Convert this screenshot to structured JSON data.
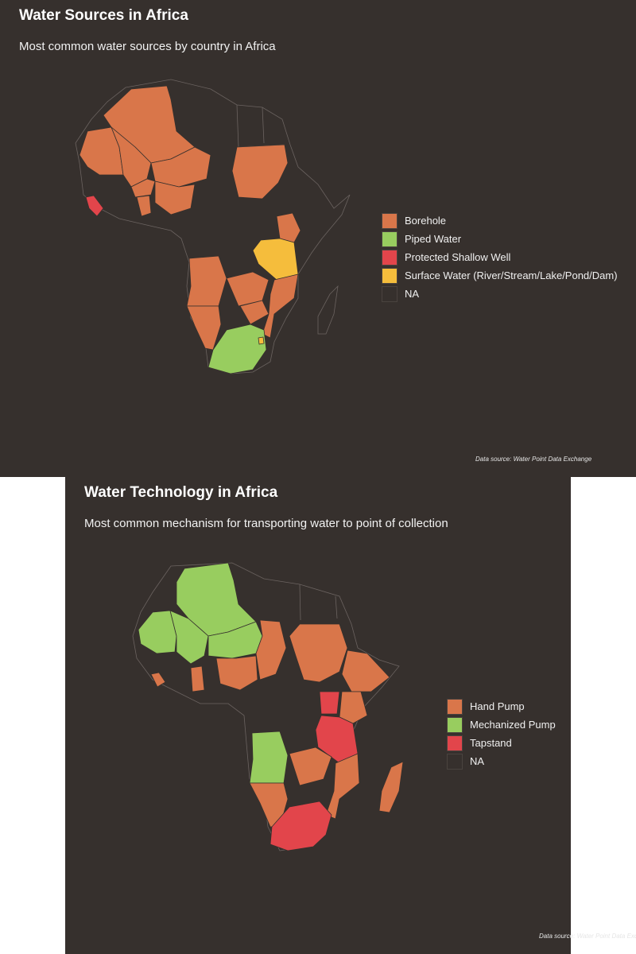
{
  "colors": {
    "background": "#36302d",
    "orange": "#d9764a",
    "green": "#98cd5f",
    "red": "#e2454b",
    "yellow": "#f5bd3c",
    "na": "#36302d",
    "outline": "#6b6360"
  },
  "map1": {
    "title": "Water Sources in Africa",
    "subtitle": "Most common water sources by country in Africa",
    "source": "Data source: Water Point Data Exchange",
    "legend": [
      {
        "label": "Borehole",
        "color": "#d9764a"
      },
      {
        "label": "Piped Water",
        "color": "#98cd5f"
      },
      {
        "label": "Protected Shallow Well",
        "color": "#e2454b"
      },
      {
        "label": "Surface Water (River/Stream/Lake/Pond/Dam)",
        "color": "#f5bd3c"
      },
      {
        "label": "NA",
        "color": "#36302d"
      }
    ],
    "regions": [
      {
        "name": "Algeria",
        "category": "Borehole"
      },
      {
        "name": "Mauritania",
        "category": "Borehole"
      },
      {
        "name": "Mali",
        "category": "Borehole"
      },
      {
        "name": "Niger",
        "category": "Borehole"
      },
      {
        "name": "Sudan",
        "category": "Borehole"
      },
      {
        "name": "Burkina Faso",
        "category": "Borehole"
      },
      {
        "name": "Nigeria",
        "category": "Borehole"
      },
      {
        "name": "Ghana",
        "category": "Borehole"
      },
      {
        "name": "Sierra Leone",
        "category": "Protected Shallow Well"
      },
      {
        "name": "Kenya",
        "category": "Borehole"
      },
      {
        "name": "Tanzania",
        "category": "Surface Water (River/Stream/Lake/Pond/Dam)"
      },
      {
        "name": "Angola",
        "category": "Borehole"
      },
      {
        "name": "Zambia",
        "category": "Borehole"
      },
      {
        "name": "Zimbabwe",
        "category": "Borehole"
      },
      {
        "name": "Mozambique",
        "category": "Borehole"
      },
      {
        "name": "Namibia",
        "category": "Borehole"
      },
      {
        "name": "South Africa",
        "category": "Piped Water"
      },
      {
        "name": "Eswatini",
        "category": "Surface Water (River/Stream/Lake/Pond/Dam)"
      }
    ]
  },
  "map2": {
    "title": "Water Technology in Africa",
    "subtitle": "Most common mechanism for transporting water to point of collection",
    "source": "Data source: Water Point Data Exch",
    "legend": [
      {
        "label": "Hand Pump",
        "color": "#d9764a"
      },
      {
        "label": "Mechanized Pump",
        "color": "#98cd5f"
      },
      {
        "label": "Tapstand",
        "color": "#e2454b"
      },
      {
        "label": "NA",
        "color": "#36302d"
      }
    ],
    "regions": [
      {
        "name": "Algeria",
        "category": "Mechanized Pump"
      },
      {
        "name": "Mauritania",
        "category": "Mechanized Pump"
      },
      {
        "name": "Mali",
        "category": "Mechanized Pump"
      },
      {
        "name": "Niger",
        "category": "Mechanized Pump"
      },
      {
        "name": "Chad",
        "category": "Hand Pump"
      },
      {
        "name": "Sudan",
        "category": "Hand Pump"
      },
      {
        "name": "Nigeria",
        "category": "Hand Pump"
      },
      {
        "name": "Ghana",
        "category": "Hand Pump"
      },
      {
        "name": "Sierra Leone",
        "category": "Hand Pump"
      },
      {
        "name": "Ethiopia",
        "category": "Hand Pump"
      },
      {
        "name": "Kenya",
        "category": "Hand Pump"
      },
      {
        "name": "Uganda",
        "category": "Tapstand"
      },
      {
        "name": "Tanzania",
        "category": "Tapstand"
      },
      {
        "name": "Angola",
        "category": "Mechanized Pump"
      },
      {
        "name": "Zambia",
        "category": "Hand Pump"
      },
      {
        "name": "Mozambique",
        "category": "Hand Pump"
      },
      {
        "name": "Madagascar",
        "category": "Hand Pump"
      },
      {
        "name": "Namibia",
        "category": "Hand Pump"
      },
      {
        "name": "South Africa",
        "category": "Tapstand"
      }
    ]
  }
}
